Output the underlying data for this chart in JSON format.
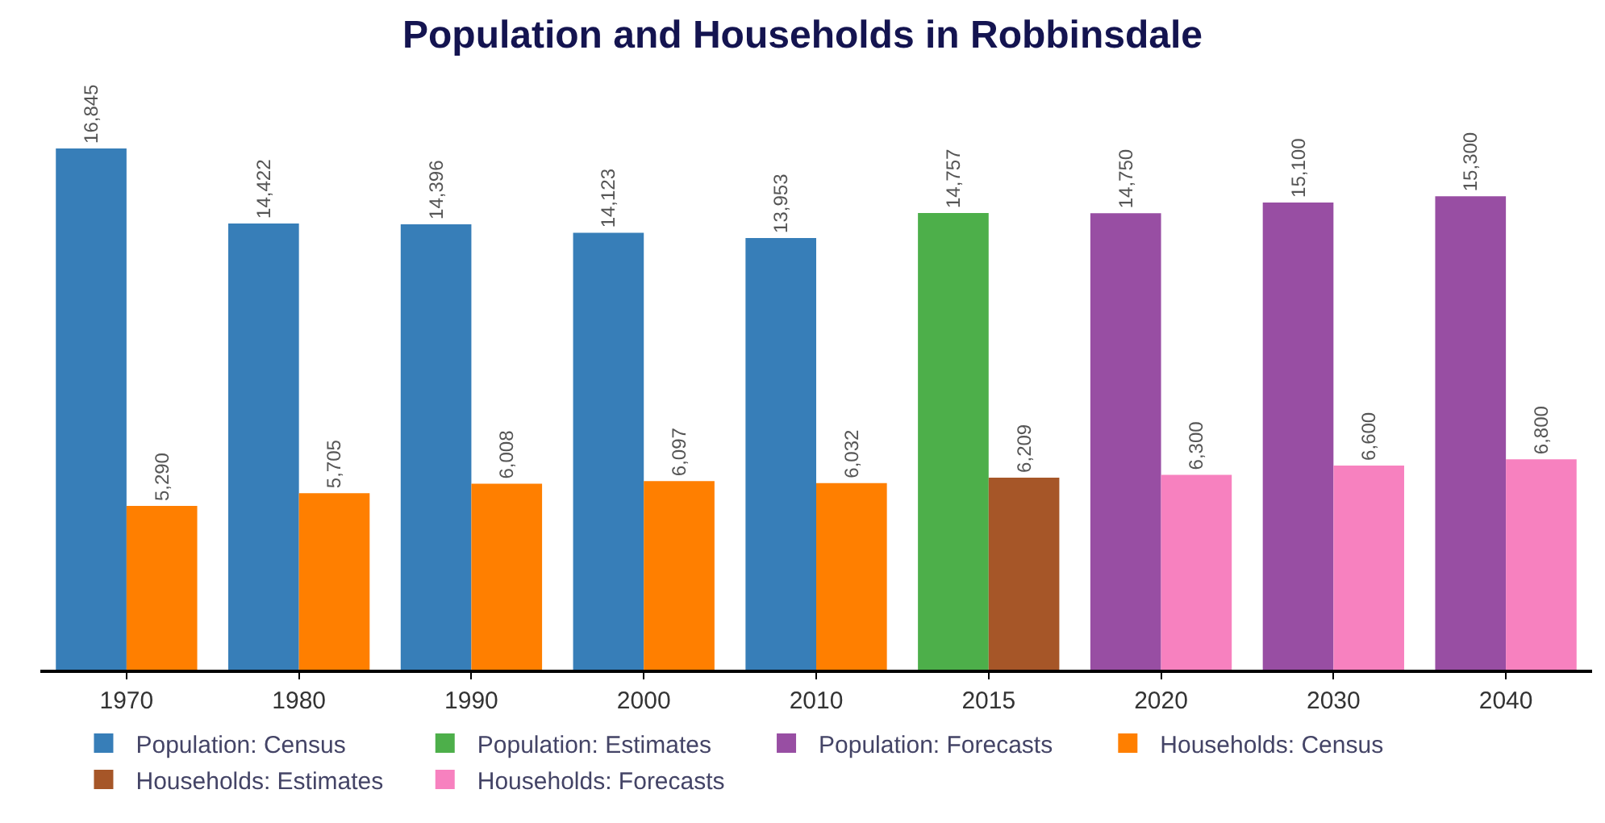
{
  "chart_data": {
    "type": "bar",
    "title": "Population and Households in Robbinsdale",
    "categories": [
      "1970",
      "1980",
      "1990",
      "2000",
      "2010",
      "2015",
      "2020",
      "2030",
      "2040"
    ],
    "series": [
      {
        "name": "Population: Census",
        "color": "#377eb8",
        "values": [
          16845,
          14422,
          14396,
          14123,
          13953,
          null,
          null,
          null,
          null
        ],
        "value_labels": [
          "16,845",
          "14,422",
          "14,396",
          "14,123",
          "13,953",
          null,
          null,
          null,
          null
        ]
      },
      {
        "name": "Population: Estimates",
        "color": "#4daf4a",
        "values": [
          null,
          null,
          null,
          null,
          null,
          14757,
          null,
          null,
          null
        ],
        "value_labels": [
          null,
          null,
          null,
          null,
          null,
          "14,757",
          null,
          null,
          null
        ]
      },
      {
        "name": "Population: Forecasts",
        "color": "#984ea3",
        "values": [
          null,
          null,
          null,
          null,
          null,
          null,
          14750,
          15100,
          15300
        ],
        "value_labels": [
          null,
          null,
          null,
          null,
          null,
          null,
          "14,750",
          "15,100",
          "15,300"
        ]
      },
      {
        "name": "Households: Census",
        "color": "#ff7f00",
        "values": [
          5290,
          5705,
          6008,
          6097,
          6032,
          null,
          null,
          null,
          null
        ],
        "value_labels": [
          "5,290",
          "5,705",
          "6,008",
          "6,097",
          "6,032",
          null,
          null,
          null,
          null
        ]
      },
      {
        "name": "Households: Estimates",
        "color": "#a65628",
        "values": [
          null,
          null,
          null,
          null,
          null,
          6209,
          null,
          null,
          null
        ],
        "value_labels": [
          null,
          null,
          null,
          null,
          null,
          "6,209",
          null,
          null,
          null
        ]
      },
      {
        "name": "Households: Forecasts",
        "color": "#f781bf",
        "values": [
          null,
          null,
          null,
          null,
          null,
          null,
          6300,
          6600,
          6800
        ],
        "value_labels": [
          null,
          null,
          null,
          null,
          null,
          null,
          "6,300",
          "6,600",
          "6,800"
        ]
      }
    ],
    "tick_labels": "x",
    "legend": "bottom"
  }
}
